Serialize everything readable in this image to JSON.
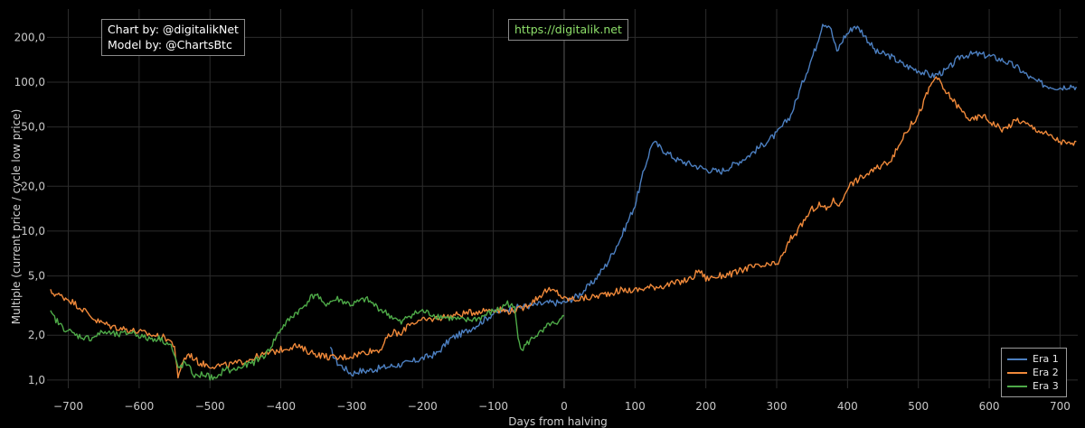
{
  "chart_data": {
    "type": "line",
    "title": "",
    "xlabel": "Days from halving",
    "ylabel": "Multiple (current price / cycle low price)",
    "y_scale": "log",
    "xlim": [
      -730,
      725
    ],
    "ylim": [
      0.88,
      310
    ],
    "x_ticks": [
      -700,
      -600,
      -500,
      -400,
      -300,
      -200,
      -100,
      0,
      100,
      200,
      300,
      400,
      500,
      600,
      700
    ],
    "x_tick_labels": [
      "−700",
      "−600",
      "−500",
      "−400",
      "−300",
      "−200",
      "−100",
      "0",
      "100",
      "200",
      "300",
      "400",
      "500",
      "600",
      "700"
    ],
    "y_ticks": [
      1,
      2,
      5,
      10,
      20,
      50,
      100,
      200
    ],
    "y_tick_labels": [
      "1,0",
      "2,0",
      "5,0",
      "10,0",
      "20,0",
      "50,0",
      "100,0",
      "200,0"
    ],
    "grid": true,
    "legend_position": "bottom-right",
    "series": [
      {
        "name": "Era 1",
        "color": "#4c7fc0",
        "points": [
          [
            -330,
            1.6
          ],
          [
            -320,
            1.3
          ],
          [
            -310,
            1.2
          ],
          [
            -300,
            1.1
          ],
          [
            -290,
            1.15
          ],
          [
            -280,
            1.15
          ],
          [
            -260,
            1.2
          ],
          [
            -240,
            1.25
          ],
          [
            -220,
            1.3
          ],
          [
            -200,
            1.4
          ],
          [
            -180,
            1.5
          ],
          [
            -160,
            1.9
          ],
          [
            -140,
            2.1
          ],
          [
            -120,
            2.4
          ],
          [
            -100,
            2.8
          ],
          [
            -80,
            3.0
          ],
          [
            -60,
            3.1
          ],
          [
            -40,
            3.2
          ],
          [
            -20,
            3.3
          ],
          [
            0,
            3.3
          ],
          [
            20,
            3.7
          ],
          [
            40,
            4.5
          ],
          [
            60,
            6.0
          ],
          [
            80,
            9.0
          ],
          [
            100,
            15
          ],
          [
            115,
            28
          ],
          [
            125,
            40
          ],
          [
            140,
            35
          ],
          [
            160,
            30
          ],
          [
            180,
            28
          ],
          [
            200,
            26
          ],
          [
            220,
            25
          ],
          [
            240,
            28
          ],
          [
            260,
            32
          ],
          [
            280,
            38
          ],
          [
            300,
            45
          ],
          [
            320,
            60
          ],
          [
            340,
            110
          ],
          [
            355,
            170
          ],
          [
            365,
            250
          ],
          [
            375,
            240
          ],
          [
            385,
            160
          ],
          [
            395,
            200
          ],
          [
            410,
            240
          ],
          [
            420,
            220
          ],
          [
            440,
            160
          ],
          [
            460,
            150
          ],
          [
            480,
            130
          ],
          [
            500,
            120
          ],
          [
            520,
            110
          ],
          [
            540,
            120
          ],
          [
            560,
            150
          ],
          [
            580,
            155
          ],
          [
            600,
            150
          ],
          [
            620,
            140
          ],
          [
            640,
            125
          ],
          [
            660,
            105
          ],
          [
            680,
            95
          ],
          [
            700,
            92
          ],
          [
            715,
            95
          ],
          [
            723,
            93
          ]
        ]
      },
      {
        "name": "Era 2",
        "color": "#f0893a",
        "points": [
          [
            -725,
            3.9
          ],
          [
            -700,
            3.5
          ],
          [
            -680,
            3.0
          ],
          [
            -660,
            2.5
          ],
          [
            -640,
            2.3
          ],
          [
            -620,
            2.2
          ],
          [
            -600,
            2.1
          ],
          [
            -580,
            2.0
          ],
          [
            -560,
            1.9
          ],
          [
            -550,
            1.7
          ],
          [
            -545,
            1.0
          ],
          [
            -540,
            1.3
          ],
          [
            -530,
            1.5
          ],
          [
            -515,
            1.3
          ],
          [
            -500,
            1.25
          ],
          [
            -480,
            1.25
          ],
          [
            -460,
            1.3
          ],
          [
            -440,
            1.4
          ],
          [
            -420,
            1.5
          ],
          [
            -400,
            1.6
          ],
          [
            -380,
            1.7
          ],
          [
            -360,
            1.55
          ],
          [
            -340,
            1.45
          ],
          [
            -320,
            1.4
          ],
          [
            -300,
            1.45
          ],
          [
            -280,
            1.55
          ],
          [
            -260,
            1.6
          ],
          [
            -250,
            1.9
          ],
          [
            -240,
            2.1
          ],
          [
            -230,
            2.0
          ],
          [
            -220,
            2.4
          ],
          [
            -200,
            2.5
          ],
          [
            -180,
            2.6
          ],
          [
            -160,
            2.7
          ],
          [
            -140,
            2.8
          ],
          [
            -120,
            2.9
          ],
          [
            -100,
            3.0
          ],
          [
            -80,
            2.9
          ],
          [
            -60,
            3.0
          ],
          [
            -40,
            3.5
          ],
          [
            -25,
            4.0
          ],
          [
            -10,
            3.9
          ],
          [
            0,
            3.5
          ],
          [
            20,
            3.5
          ],
          [
            40,
            3.6
          ],
          [
            60,
            3.8
          ],
          [
            80,
            4.0
          ],
          [
            100,
            4.0
          ],
          [
            120,
            4.2
          ],
          [
            140,
            4.3
          ],
          [
            160,
            4.5
          ],
          [
            180,
            4.8
          ],
          [
            190,
            5.5
          ],
          [
            200,
            4.8
          ],
          [
            220,
            5.0
          ],
          [
            240,
            5.2
          ],
          [
            260,
            5.7
          ],
          [
            280,
            5.8
          ],
          [
            300,
            6.0
          ],
          [
            310,
            7.0
          ],
          [
            320,
            9.0
          ],
          [
            330,
            10
          ],
          [
            340,
            12
          ],
          [
            350,
            14
          ],
          [
            360,
            15
          ],
          [
            370,
            14
          ],
          [
            380,
            16
          ],
          [
            390,
            15
          ],
          [
            400,
            20
          ],
          [
            420,
            23
          ],
          [
            440,
            26
          ],
          [
            460,
            30
          ],
          [
            470,
            35
          ],
          [
            480,
            45
          ],
          [
            500,
            60
          ],
          [
            515,
            90
          ],
          [
            525,
            110
          ],
          [
            535,
            90
          ],
          [
            545,
            80
          ],
          [
            560,
            65
          ],
          [
            575,
            55
          ],
          [
            590,
            60
          ],
          [
            600,
            55
          ],
          [
            620,
            48
          ],
          [
            640,
            56
          ],
          [
            660,
            50
          ],
          [
            680,
            45
          ],
          [
            700,
            40
          ],
          [
            715,
            38
          ],
          [
            723,
            40
          ]
        ]
      },
      {
        "name": "Era 3",
        "color": "#4eaa48",
        "points": [
          [
            -725,
            2.8
          ],
          [
            -710,
            2.3
          ],
          [
            -690,
            2.0
          ],
          [
            -670,
            1.9
          ],
          [
            -650,
            2.1
          ],
          [
            -630,
            2.0
          ],
          [
            -610,
            2.1
          ],
          [
            -590,
            1.9
          ],
          [
            -570,
            1.9
          ],
          [
            -555,
            1.7
          ],
          [
            -545,
            1.2
          ],
          [
            -535,
            1.3
          ],
          [
            -520,
            1.05
          ],
          [
            -510,
            1.1
          ],
          [
            -500,
            1.05
          ],
          [
            -490,
            1.0
          ],
          [
            -480,
            1.2
          ],
          [
            -470,
            1.15
          ],
          [
            -460,
            1.2
          ],
          [
            -440,
            1.3
          ],
          [
            -420,
            1.5
          ],
          [
            -400,
            2.2
          ],
          [
            -380,
            2.8
          ],
          [
            -370,
            3.0
          ],
          [
            -360,
            3.5
          ],
          [
            -350,
            3.8
          ],
          [
            -340,
            3.2
          ],
          [
            -320,
            3.5
          ],
          [
            -300,
            3.2
          ],
          [
            -280,
            3.5
          ],
          [
            -260,
            3.0
          ],
          [
            -240,
            2.6
          ],
          [
            -230,
            2.4
          ],
          [
            -220,
            2.7
          ],
          [
            -200,
            2.9
          ],
          [
            -180,
            2.7
          ],
          [
            -160,
            2.6
          ],
          [
            -140,
            2.5
          ],
          [
            -120,
            2.6
          ],
          [
            -100,
            2.9
          ],
          [
            -90,
            3.0
          ],
          [
            -80,
            3.3
          ],
          [
            -70,
            3.0
          ],
          [
            -65,
            2.0
          ],
          [
            -60,
            1.6
          ],
          [
            -50,
            1.8
          ],
          [
            -40,
            2.0
          ],
          [
            -30,
            2.1
          ],
          [
            -20,
            2.4
          ],
          [
            -10,
            2.3
          ],
          [
            0,
            2.7
          ]
        ]
      }
    ]
  },
  "annotations": {
    "credit_line1": "Chart by: @digitalikNet",
    "credit_line2": "Model by: @ChartsBtc",
    "url": "https://digitalik.net"
  }
}
